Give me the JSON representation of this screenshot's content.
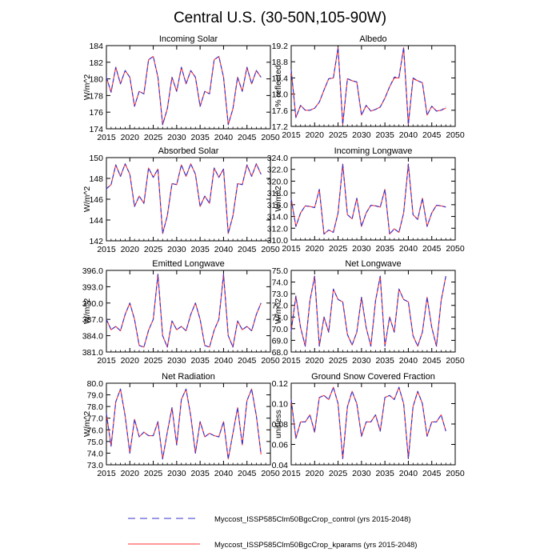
{
  "title": "Central U.S. (30-50N,105-90W)",
  "colors": {
    "control": "#3333cc",
    "kparams": "#ff3333",
    "axis": "#000000"
  },
  "legend": {
    "position": "bottom-center",
    "entries": [
      {
        "label": "Myccost_ISSP585Clm50BgcCrop_control (yrs 2015-2048)",
        "style": "dashed",
        "color": "#3333cc"
      },
      {
        "label": "Myccost_ISSP585Clm50BgcCrop_kparams (yrs 2015-2048)",
        "style": "solid",
        "color": "#ff3333"
      }
    ]
  },
  "chart_data": [
    {
      "type": "line",
      "title": "Incoming Solar",
      "ylabel": "W/m^2",
      "xlim": [
        2015,
        2050
      ],
      "xticks": [
        2015,
        2020,
        2025,
        2030,
        2035,
        2040,
        2045,
        2050
      ],
      "ylim": [
        174,
        184
      ],
      "yticks": [
        "174",
        "176",
        "178",
        "180",
        "182",
        "184"
      ],
      "series": [
        {
          "name": "control",
          "x_start": 2015,
          "values": [
            180.2,
            178.4,
            181.4,
            179.4,
            181.0,
            180.2,
            176.7,
            178.5,
            178.2,
            182.3,
            182.7,
            180.2,
            174.5,
            176.4,
            180.2,
            178.5,
            181.4,
            179.4,
            181.0,
            180.2,
            176.7,
            178.5,
            178.2,
            182.3,
            182.7,
            180.2,
            174.5,
            176.4,
            180.2,
            178.5,
            181.4,
            179.4,
            181.0,
            180.2
          ]
        },
        {
          "name": "kparams",
          "x_start": 2015,
          "values": [
            180.2,
            178.4,
            181.4,
            179.4,
            181.0,
            180.2,
            176.7,
            178.5,
            178.2,
            182.3,
            182.7,
            180.2,
            174.5,
            176.4,
            180.2,
            178.5,
            181.4,
            179.4,
            181.0,
            180.2,
            176.7,
            178.5,
            178.2,
            182.3,
            182.7,
            180.2,
            174.5,
            176.4,
            180.2,
            178.5,
            181.4,
            179.4,
            181.0,
            180.2
          ]
        }
      ]
    },
    {
      "type": "line",
      "title": "Albedo",
      "ylabel": "% reflected",
      "xlim": [
        2015,
        2050
      ],
      "xticks": [
        2015,
        2020,
        2025,
        2030,
        2035,
        2040,
        2045,
        2050
      ],
      "ylim": [
        17.2,
        19.2
      ],
      "yticks": [
        "17.2",
        "17.6",
        "18.0",
        "18.4",
        "18.8",
        "19.2"
      ],
      "series": [
        {
          "name": "control",
          "x_start": 2015,
          "values": [
            18.6,
            17.42,
            17.72,
            17.6,
            17.6,
            17.65,
            17.8,
            18.1,
            18.38,
            18.4,
            19.15,
            17.25,
            18.38,
            18.33,
            18.3,
            17.48,
            17.72,
            17.58,
            17.62,
            17.68,
            17.9,
            18.18,
            18.42,
            18.42,
            19.15,
            17.25,
            18.4,
            18.33,
            18.28,
            17.48,
            17.7,
            17.58,
            17.6,
            17.68
          ]
        },
        {
          "name": "kparams",
          "x_start": 2015,
          "values": [
            18.6,
            17.42,
            17.72,
            17.6,
            17.6,
            17.65,
            17.8,
            18.1,
            18.38,
            18.4,
            19.15,
            17.25,
            18.38,
            18.33,
            18.3,
            17.48,
            17.72,
            17.58,
            17.62,
            17.68,
            17.9,
            18.18,
            18.4,
            18.4,
            19.15,
            17.25,
            18.38,
            18.33,
            18.28,
            17.48,
            17.7,
            17.58,
            17.6,
            17.65
          ]
        }
      ]
    },
    {
      "type": "line",
      "title": "Absorbed Solar",
      "ylabel": "W/m^2",
      "xlim": [
        2015,
        2050
      ],
      "xticks": [
        2015,
        2020,
        2025,
        2030,
        2035,
        2040,
        2045,
        2050
      ],
      "ylim": [
        142,
        150
      ],
      "yticks": [
        "142",
        "144",
        "146",
        "148",
        "150"
      ],
      "series": [
        {
          "name": "control",
          "x_start": 2015,
          "values": [
            147.0,
            147.4,
            149.3,
            148.2,
            149.4,
            148.4,
            145.3,
            146.3,
            145.6,
            149.0,
            148.1,
            148.9,
            142.7,
            144.4,
            147.5,
            147.4,
            149.3,
            148.2,
            149.4,
            148.4,
            145.3,
            146.3,
            145.6,
            149.0,
            148.1,
            148.9,
            142.7,
            144.4,
            147.5,
            147.4,
            149.3,
            148.2,
            149.4,
            148.4
          ]
        },
        {
          "name": "kparams",
          "x_start": 2015,
          "values": [
            147.0,
            147.4,
            149.3,
            148.2,
            149.4,
            148.4,
            145.3,
            146.3,
            145.6,
            149.0,
            148.1,
            148.9,
            142.7,
            144.4,
            147.5,
            147.4,
            149.3,
            148.2,
            149.4,
            148.4,
            145.3,
            146.3,
            145.6,
            149.0,
            148.1,
            148.9,
            142.7,
            144.4,
            147.5,
            147.4,
            149.3,
            148.2,
            149.4,
            148.4
          ]
        }
      ]
    },
    {
      "type": "line",
      "title": "Incoming Longwave",
      "ylabel": "W/m^2",
      "xlim": [
        2015,
        2050
      ],
      "xticks": [
        2015,
        2020,
        2025,
        2030,
        2035,
        2040,
        2045,
        2050
      ],
      "ylim": [
        310,
        324
      ],
      "yticks": [
        "310.0",
        "312.0",
        "314.0",
        "316.0",
        "318.0",
        "320.0",
        "322.0",
        "324.0"
      ],
      "series": [
        {
          "name": "control",
          "x_start": 2015,
          "values": [
            317.0,
            312.3,
            314.6,
            315.8,
            315.7,
            315.5,
            318.6,
            311.0,
            311.7,
            311.3,
            314.6,
            322.9,
            314.3,
            313.6,
            317.1,
            312.3,
            314.6,
            315.9,
            315.8,
            315.6,
            318.6,
            311.0,
            311.9,
            311.3,
            314.6,
            322.9,
            314.3,
            313.5,
            317.1,
            312.3,
            314.6,
            315.9,
            315.8,
            315.6
          ]
        },
        {
          "name": "kparams",
          "x_start": 2015,
          "values": [
            317.0,
            312.3,
            314.6,
            315.8,
            315.7,
            315.5,
            318.6,
            311.0,
            311.7,
            311.3,
            314.6,
            322.9,
            314.3,
            313.6,
            317.1,
            312.3,
            314.6,
            315.9,
            315.8,
            315.6,
            318.6,
            311.0,
            311.9,
            311.3,
            314.6,
            322.9,
            314.3,
            313.5,
            317.1,
            312.3,
            314.6,
            315.9,
            315.8,
            315.6
          ]
        }
      ]
    },
    {
      "type": "line",
      "title": "Emitted Longwave",
      "ylabel": "W/m^2",
      "xlim": [
        2015,
        2050
      ],
      "xticks": [
        2015,
        2020,
        2025,
        2030,
        2035,
        2040,
        2045,
        2050
      ],
      "ylim": [
        381,
        396
      ],
      "yticks": [
        "381.0",
        "384.0",
        "387.0",
        "390.0",
        "393.0",
        "396.0"
      ],
      "series": [
        {
          "name": "control",
          "x_start": 2015,
          "values": [
            387.0,
            385.1,
            385.7,
            384.9,
            387.9,
            390.0,
            387.0,
            382.2,
            381.9,
            385.0,
            387.0,
            395.3,
            384.0,
            381.9,
            386.7,
            385.1,
            385.7,
            384.9,
            387.9,
            390.0,
            387.0,
            382.2,
            381.9,
            385.0,
            387.0,
            395.3,
            384.0,
            381.9,
            386.7,
            385.1,
            385.7,
            384.9,
            387.9,
            390.0
          ]
        },
        {
          "name": "kparams",
          "x_start": 2015,
          "values": [
            387.0,
            385.1,
            385.7,
            384.9,
            387.9,
            390.0,
            387.0,
            382.2,
            381.9,
            385.0,
            387.0,
            395.3,
            384.0,
            381.9,
            386.7,
            385.1,
            385.7,
            384.9,
            387.9,
            390.0,
            387.0,
            382.2,
            381.9,
            385.0,
            387.0,
            395.3,
            384.0,
            381.9,
            386.7,
            385.1,
            385.7,
            384.9,
            387.9,
            390.0
          ]
        }
      ]
    },
    {
      "type": "line",
      "title": "Net Longwave",
      "ylabel": "W/m^2",
      "xlim": [
        2015,
        2050
      ],
      "xticks": [
        2015,
        2020,
        2025,
        2030,
        2035,
        2040,
        2045,
        2050
      ],
      "ylim": [
        68,
        75
      ],
      "yticks": [
        "68.0",
        "69.0",
        "70.0",
        "71.0",
        "72.0",
        "73.0",
        "74.0",
        "75.0"
      ],
      "series": [
        {
          "name": "control",
          "x_start": 2015,
          "values": [
            69.8,
            72.8,
            70.1,
            68.5,
            72.4,
            74.5,
            68.5,
            71.0,
            69.7,
            73.4,
            72.5,
            72.3,
            69.5,
            68.6,
            69.7,
            72.7,
            70.1,
            68.5,
            72.4,
            74.5,
            68.5,
            71.0,
            69.7,
            73.4,
            72.5,
            72.3,
            69.4,
            68.5,
            69.7,
            72.7,
            70.1,
            68.5,
            72.4,
            74.5
          ]
        },
        {
          "name": "kparams",
          "x_start": 2015,
          "values": [
            69.8,
            72.8,
            70.1,
            68.5,
            72.4,
            74.5,
            68.5,
            71.0,
            69.7,
            73.4,
            72.5,
            72.3,
            69.5,
            68.6,
            69.7,
            72.7,
            70.1,
            68.5,
            72.4,
            74.5,
            68.5,
            71.0,
            69.7,
            73.4,
            72.5,
            72.3,
            69.4,
            68.5,
            69.7,
            72.7,
            70.1,
            68.5,
            72.4,
            74.5
          ]
        }
      ]
    },
    {
      "type": "line",
      "title": "Net Radiation",
      "ylabel": "W/m^2",
      "xlim": [
        2015,
        2050
      ],
      "xticks": [
        2015,
        2020,
        2025,
        2030,
        2035,
        2040,
        2045,
        2050
      ],
      "ylim": [
        73,
        80
      ],
      "yticks": [
        "73.0",
        "74.0",
        "75.0",
        "76.0",
        "77.0",
        "78.0",
        "79.0",
        "80.0"
      ],
      "series": [
        {
          "name": "control",
          "x_start": 2015,
          "values": [
            77.4,
            74.6,
            78.4,
            79.5,
            77.2,
            74.0,
            76.9,
            75.4,
            75.8,
            75.5,
            75.5,
            76.7,
            73.5,
            75.8,
            77.9,
            74.7,
            78.6,
            79.5,
            77.2,
            74.0,
            76.7,
            75.4,
            75.7,
            75.5,
            75.4,
            76.7,
            73.5,
            75.7,
            77.9,
            74.7,
            78.5,
            79.5,
            77.2,
            73.9
          ]
        },
        {
          "name": "kparams",
          "x_start": 2015,
          "values": [
            77.4,
            74.6,
            78.4,
            79.5,
            77.2,
            74.0,
            76.9,
            75.4,
            75.8,
            75.5,
            75.5,
            76.7,
            73.5,
            75.8,
            77.9,
            74.7,
            78.6,
            79.5,
            77.2,
            74.0,
            76.7,
            75.4,
            75.7,
            75.5,
            75.4,
            76.7,
            73.5,
            75.7,
            77.9,
            74.7,
            78.5,
            79.5,
            77.2,
            73.9
          ]
        }
      ]
    },
    {
      "type": "line",
      "title": "Ground Snow Covered Fraction",
      "ylabel": "unitless",
      "xlim": [
        2015,
        2050
      ],
      "xticks": [
        2015,
        2020,
        2025,
        2030,
        2035,
        2040,
        2045,
        2050
      ],
      "ylim": [
        0.04,
        0.12
      ],
      "yticks": [
        "0.04",
        "0.06",
        "0.08",
        "0.10",
        "0.12"
      ],
      "series": [
        {
          "name": "control",
          "x_start": 2015,
          "values": [
            0.104,
            0.066,
            0.082,
            0.082,
            0.089,
            0.072,
            0.106,
            0.108,
            0.104,
            0.116,
            0.1,
            0.046,
            0.097,
            0.112,
            0.1,
            0.068,
            0.082,
            0.082,
            0.089,
            0.073,
            0.106,
            0.108,
            0.104,
            0.116,
            0.1,
            0.046,
            0.097,
            0.112,
            0.1,
            0.068,
            0.082,
            0.082,
            0.089,
            0.073
          ]
        },
        {
          "name": "kparams",
          "x_start": 2015,
          "values": [
            0.104,
            0.066,
            0.082,
            0.082,
            0.089,
            0.072,
            0.106,
            0.108,
            0.104,
            0.116,
            0.1,
            0.046,
            0.097,
            0.112,
            0.1,
            0.068,
            0.082,
            0.082,
            0.089,
            0.073,
            0.106,
            0.108,
            0.104,
            0.116,
            0.1,
            0.046,
            0.097,
            0.112,
            0.1,
            0.068,
            0.082,
            0.082,
            0.089,
            0.073
          ]
        }
      ]
    }
  ]
}
